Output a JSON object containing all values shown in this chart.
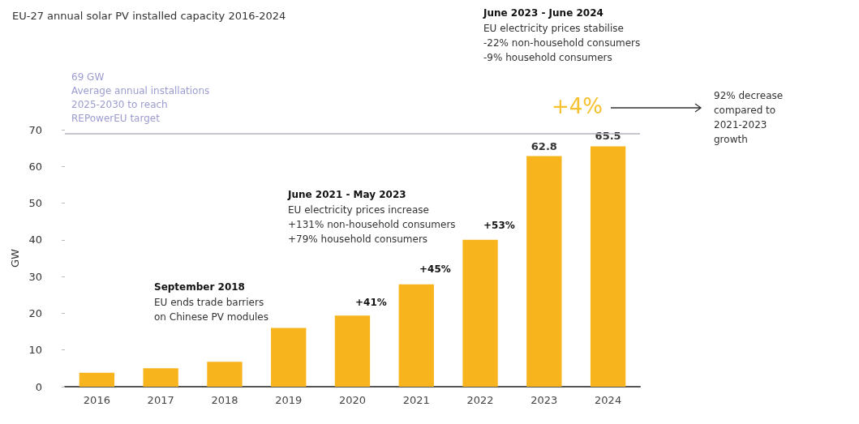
{
  "chart_data": {
    "type": "bar",
    "title": "EU-27 annual solar PV installed capacity 2016-2024",
    "ylabel": "GW",
    "categories": [
      "2016",
      "2017",
      "2018",
      "2019",
      "2020",
      "2021",
      "2022",
      "2023",
      "2024"
    ],
    "values": [
      3.8,
      5.0,
      6.8,
      16.0,
      19.4,
      27.9,
      40.0,
      62.8,
      65.5
    ],
    "value_labels": [
      null,
      null,
      null,
      null,
      null,
      null,
      null,
      "62.8",
      "65.5"
    ],
    "color": "#f7b41c",
    "ylim": [
      0,
      70
    ],
    "yticks": [
      0,
      10,
      20,
      30,
      40,
      50,
      60,
      70
    ],
    "grid": false,
    "ref_lines": [
      {
        "axis": "y",
        "value": 69,
        "label": "69 GW\nAverage annual installations\n2025-2030 to reach\nREPowerEU target",
        "color": "#b3b3bf"
      }
    ],
    "annotations": [
      "+41%",
      "+45%",
      "+53%",
      "September 2018\nEU ends trade barriers\non Chinese PV modules",
      "June 2021 - May 2023\nEU electricity prices increase\n+131% non-household consumers\n+79% household consumers",
      "June 2023 - June 2024\nEU electricity prices stabilise\n-22% non-household consumers\n-9% household consumers",
      "+4%",
      "92% decrease\ncompared to\n2021-2023\ngrowth"
    ]
  }
}
